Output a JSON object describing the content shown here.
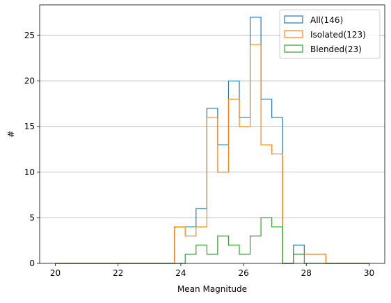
{
  "chart_data": {
    "type": "step-histogram",
    "xlabel": "Mean Magnitude",
    "ylabel": "#",
    "xlim": [
      19.5,
      30.5
    ],
    "ylim": [
      0,
      28.35
    ],
    "x_ticks": [
      20,
      22,
      24,
      26,
      28,
      30
    ],
    "y_ticks": [
      0,
      5,
      10,
      15,
      20,
      25
    ],
    "grid": "horizontal",
    "legend_position": "top-right",
    "bin_edges": [
      20.0,
      20.345,
      20.69,
      21.035,
      21.38,
      21.725,
      22.07,
      22.415,
      22.76,
      23.105,
      23.45,
      23.795,
      24.14,
      24.485,
      24.83,
      25.175,
      25.52,
      25.865,
      26.21,
      26.555,
      26.9,
      27.245,
      27.59,
      27.935,
      28.28,
      28.625,
      28.97,
      29.315,
      29.66,
      30.0
    ],
    "series": [
      {
        "name": "All(146)",
        "color": "#1f77b4",
        "counts": [
          0,
          0,
          0,
          0,
          0,
          0,
          0,
          0,
          0,
          0,
          0,
          4,
          4,
          6,
          17,
          13,
          20,
          16,
          27,
          18,
          16,
          0,
          2,
          1,
          1,
          0,
          0,
          0,
          0
        ]
      },
      {
        "name": "Isolated(123)",
        "color": "#ff7f0e",
        "counts": [
          0,
          0,
          0,
          0,
          0,
          0,
          0,
          0,
          0,
          0,
          0,
          4,
          3,
          4,
          16,
          10,
          18,
          15,
          24,
          13,
          12,
          0,
          1,
          1,
          1,
          0,
          0,
          0,
          0
        ]
      },
      {
        "name": "Blended(23)",
        "color": "#2ca02c",
        "counts": [
          0,
          0,
          0,
          0,
          0,
          0,
          0,
          0,
          0,
          0,
          0,
          0,
          1,
          2,
          1,
          3,
          2,
          1,
          3,
          5,
          4,
          0,
          1,
          0,
          0,
          0,
          0,
          0,
          0
        ]
      }
    ]
  }
}
